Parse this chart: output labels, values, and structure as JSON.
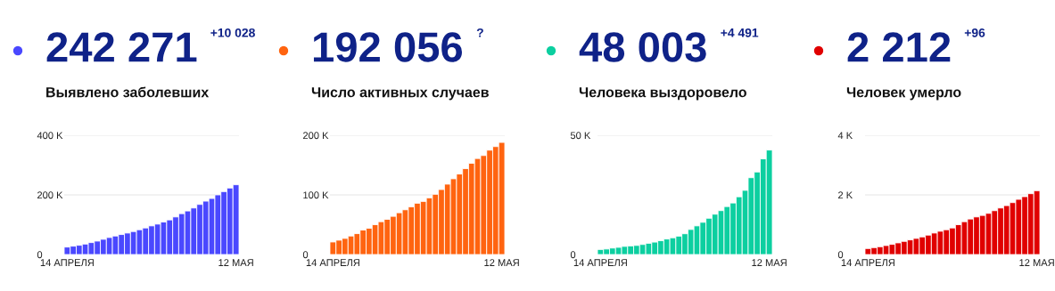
{
  "chart_data": [
    {
      "type": "bar",
      "title": "242 271",
      "subtitle": "Выявлено заболевших",
      "annotations": [
        "+10 028"
      ],
      "color": "#4a48ff",
      "categories": [
        "14 АПРЕЛЯ",
        null,
        null,
        null,
        null,
        null,
        null,
        null,
        null,
        null,
        null,
        null,
        null,
        null,
        null,
        null,
        null,
        null,
        null,
        null,
        null,
        null,
        null,
        null,
        null,
        null,
        null,
        null,
        "12 МАЯ"
      ],
      "values": [
        25000,
        28000,
        31000,
        35000,
        40000,
        45000,
        51000,
        57000,
        62000,
        67000,
        72000,
        77000,
        83000,
        89000,
        96000,
        102000,
        109000,
        116000,
        126000,
        137000,
        146000,
        156000,
        168000,
        179000,
        188000,
        200000,
        211000,
        223000,
        234000
      ],
      "ylim": [
        0,
        400000
      ],
      "yticks": [
        {
          "value": 0,
          "label": "0"
        },
        {
          "value": 200000,
          "label": "200 K"
        },
        {
          "value": 400000,
          "label": "400 K"
        }
      ],
      "grid": "y"
    },
    {
      "type": "bar",
      "title": "192 056",
      "subtitle": "Число активных случаев",
      "annotations": [
        "?"
      ],
      "color": "#ff6410",
      "categories": [
        "14 АПРЕЛЯ",
        null,
        null,
        null,
        null,
        null,
        null,
        null,
        null,
        null,
        null,
        null,
        null,
        null,
        null,
        null,
        null,
        null,
        null,
        null,
        null,
        null,
        null,
        null,
        null,
        null,
        null,
        null,
        "12 МАЯ"
      ],
      "values": [
        21000,
        24000,
        27000,
        31000,
        35000,
        41000,
        44000,
        50000,
        55000,
        59000,
        64000,
        70000,
        75000,
        80000,
        86000,
        89000,
        95000,
        101000,
        109000,
        118000,
        127000,
        135000,
        144000,
        153000,
        161000,
        166000,
        175000,
        181000,
        188000
      ],
      "ylim": [
        0,
        200000
      ],
      "yticks": [
        {
          "value": 0,
          "label": "0"
        },
        {
          "value": 100000,
          "label": "100 K"
        },
        {
          "value": 200000,
          "label": "200 K"
        }
      ],
      "grid": "y"
    },
    {
      "type": "bar",
      "title": "48 003",
      "subtitle": "Человека выздоровело",
      "annotations": [
        "+4 491"
      ],
      "color": "#0ccfa0",
      "categories": [
        "14 АПРЕЛЯ",
        null,
        null,
        null,
        null,
        null,
        null,
        null,
        null,
        null,
        null,
        null,
        null,
        null,
        null,
        null,
        null,
        null,
        null,
        null,
        null,
        null,
        null,
        null,
        null,
        null,
        null,
        null,
        "12 МАЯ"
      ],
      "values": [
        2100,
        2300,
        2700,
        3000,
        3400,
        3600,
        3800,
        4200,
        4700,
        5200,
        5800,
        6500,
        7000,
        7700,
        8700,
        10500,
        12000,
        13500,
        15200,
        16900,
        18400,
        20100,
        21600,
        24200,
        26900,
        32200,
        34600,
        40100,
        43800
      ],
      "ylim": [
        0,
        50000
      ],
      "yticks": [
        {
          "value": 0,
          "label": "0"
        },
        {
          "value": 50000,
          "label": "50 K"
        }
      ],
      "grid": "y"
    },
    {
      "type": "bar",
      "title": "2 212",
      "subtitle": "Человек умерло",
      "annotations": [
        "+96"
      ],
      "color": "#e00000",
      "categories": [
        "14 АПРЕЛЯ",
        null,
        null,
        null,
        null,
        null,
        null,
        null,
        null,
        null,
        null,
        null,
        null,
        null,
        null,
        null,
        null,
        null,
        null,
        null,
        null,
        null,
        null,
        null,
        null,
        null,
        null,
        null,
        "12 МАЯ"
      ],
      "values": [
        200,
        230,
        260,
        300,
        340,
        390,
        440,
        490,
        540,
        590,
        650,
        720,
        780,
        830,
        890,
        1000,
        1100,
        1190,
        1260,
        1310,
        1380,
        1470,
        1560,
        1640,
        1740,
        1850,
        1940,
        2040,
        2140
      ],
      "ylim": [
        0,
        4000
      ],
      "yticks": [
        {
          "value": 0,
          "label": "0"
        },
        {
          "value": 2000,
          "label": "2 K"
        },
        {
          "value": 4000,
          "label": "4 K"
        }
      ],
      "grid": "y"
    }
  ]
}
